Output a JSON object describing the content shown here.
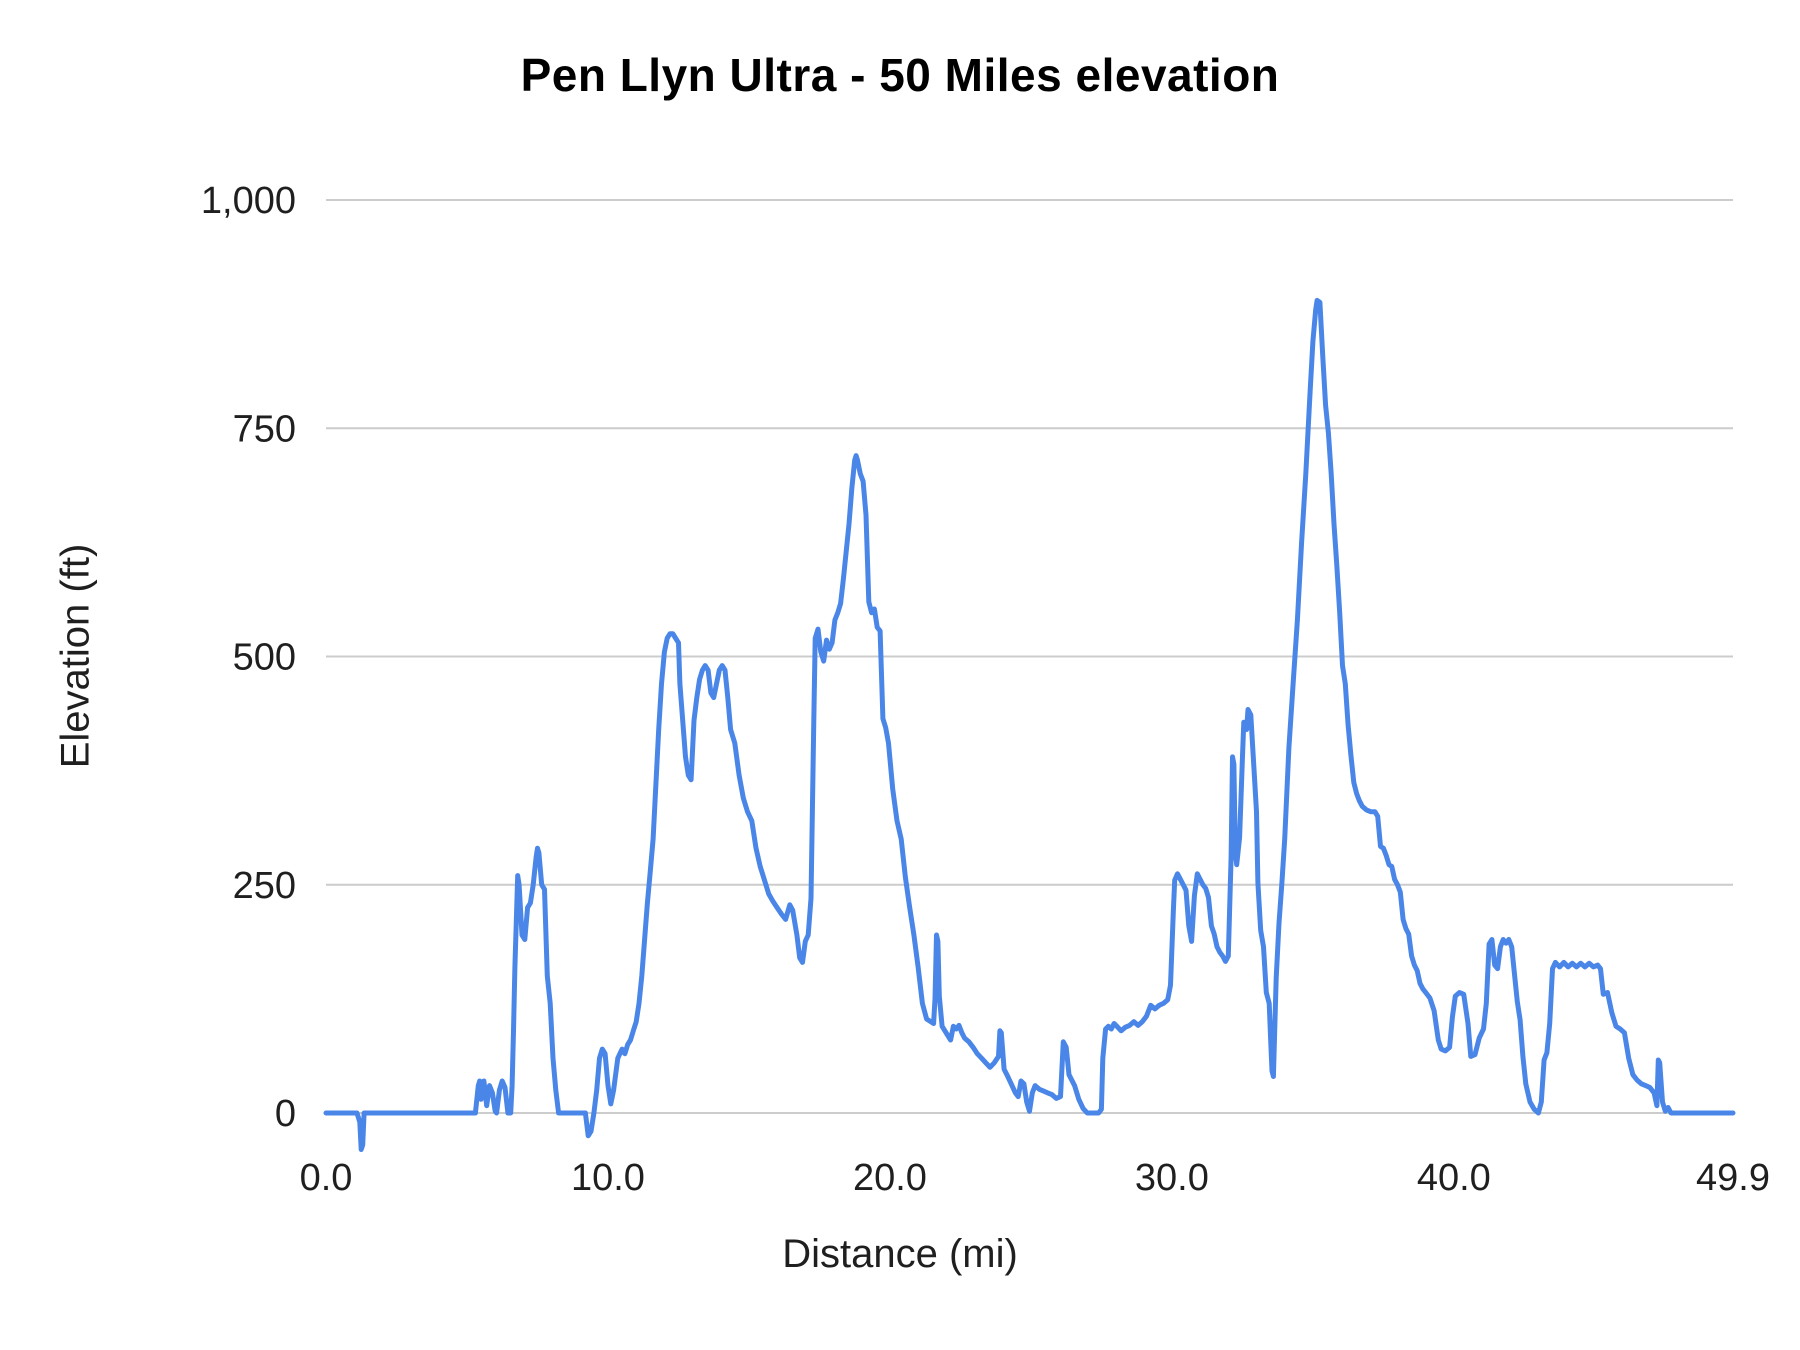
{
  "chart_data": {
    "type": "line",
    "title": "Pen Llyn Ultra - 50 Miles elevation",
    "xlabel": "Distance (mi)",
    "ylabel": "Elevation (ft)",
    "xlim": [
      0,
      49.9
    ],
    "ylim": [
      0,
      1000
    ],
    "grid": "horizontal",
    "legend": "none",
    "line_color": "#4a86e8",
    "grid_color": "#cccccc",
    "x_ticks": [
      0,
      10,
      20,
      30,
      40,
      49.9
    ],
    "x_tick_labels": [
      "0.0",
      "10.0",
      "20.0",
      "30.0",
      "40.0",
      "49.9"
    ],
    "y_ticks": [
      0,
      250,
      500,
      750,
      1000
    ],
    "y_tick_labels": [
      "0",
      "250",
      "500",
      "750",
      "1,000"
    ],
    "series": [
      {
        "name": "Elevation"
      }
    ],
    "points": [
      [
        0,
        0
      ],
      [
        0.8,
        0
      ],
      [
        1.1,
        0
      ],
      [
        1.2,
        -10
      ],
      [
        1.25,
        -40
      ],
      [
        1.3,
        -35
      ],
      [
        1.35,
        0
      ],
      [
        1.6,
        0
      ],
      [
        2,
        0
      ],
      [
        2.5,
        0
      ],
      [
        3,
        0
      ],
      [
        3.5,
        0
      ],
      [
        4,
        0
      ],
      [
        4.5,
        0
      ],
      [
        5,
        0
      ],
      [
        5.3,
        0
      ],
      [
        5.4,
        30
      ],
      [
        5.45,
        35
      ],
      [
        5.5,
        15
      ],
      [
        5.55,
        30
      ],
      [
        5.6,
        35
      ],
      [
        5.7,
        8
      ],
      [
        5.8,
        30
      ],
      [
        5.9,
        22
      ],
      [
        6,
        2
      ],
      [
        6.05,
        0
      ],
      [
        6.15,
        25
      ],
      [
        6.25,
        35
      ],
      [
        6.35,
        28
      ],
      [
        6.45,
        0
      ],
      [
        6.55,
        0
      ],
      [
        6.6,
        30
      ],
      [
        6.65,
        90
      ],
      [
        6.7,
        160
      ],
      [
        6.8,
        260
      ],
      [
        6.85,
        250
      ],
      [
        6.95,
        195
      ],
      [
        7.05,
        190
      ],
      [
        7.15,
        225
      ],
      [
        7.25,
        230
      ],
      [
        7.35,
        250
      ],
      [
        7.45,
        280
      ],
      [
        7.5,
        290
      ],
      [
        7.55,
        285
      ],
      [
        7.65,
        250
      ],
      [
        7.75,
        245
      ],
      [
        7.85,
        150
      ],
      [
        7.95,
        120
      ],
      [
        8.05,
        60
      ],
      [
        8.15,
        25
      ],
      [
        8.25,
        0
      ],
      [
        8.6,
        0
      ],
      [
        9,
        0
      ],
      [
        9.2,
        0
      ],
      [
        9.3,
        -25
      ],
      [
        9.4,
        -20
      ],
      [
        9.5,
        0
      ],
      [
        9.6,
        25
      ],
      [
        9.7,
        60
      ],
      [
        9.8,
        70
      ],
      [
        9.9,
        65
      ],
      [
        10,
        30
      ],
      [
        10.1,
        10
      ],
      [
        10.2,
        25
      ],
      [
        10.35,
        60
      ],
      [
        10.5,
        70
      ],
      [
        10.6,
        65
      ],
      [
        10.7,
        75
      ],
      [
        10.8,
        80
      ],
      [
        10.9,
        90
      ],
      [
        11,
        100
      ],
      [
        11.1,
        120
      ],
      [
        11.2,
        150
      ],
      [
        11.3,
        190
      ],
      [
        11.4,
        230
      ],
      [
        11.5,
        265
      ],
      [
        11.6,
        300
      ],
      [
        11.7,
        360
      ],
      [
        11.8,
        420
      ],
      [
        11.9,
        470
      ],
      [
        12,
        505
      ],
      [
        12.1,
        520
      ],
      [
        12.2,
        525
      ],
      [
        12.3,
        525
      ],
      [
        12.4,
        520
      ],
      [
        12.5,
        515
      ],
      [
        12.55,
        470
      ],
      [
        12.65,
        430
      ],
      [
        12.75,
        390
      ],
      [
        12.85,
        370
      ],
      [
        12.95,
        365
      ],
      [
        13.05,
        430
      ],
      [
        13.15,
        455
      ],
      [
        13.25,
        475
      ],
      [
        13.35,
        485
      ],
      [
        13.45,
        490
      ],
      [
        13.55,
        485
      ],
      [
        13.65,
        460
      ],
      [
        13.75,
        455
      ],
      [
        13.85,
        470
      ],
      [
        13.95,
        485
      ],
      [
        14.05,
        490
      ],
      [
        14.15,
        485
      ],
      [
        14.25,
        455
      ],
      [
        14.35,
        420
      ],
      [
        14.5,
        405
      ],
      [
        14.65,
        370
      ],
      [
        14.8,
        345
      ],
      [
        14.95,
        330
      ],
      [
        15.1,
        320
      ],
      [
        15.25,
        290
      ],
      [
        15.4,
        270
      ],
      [
        15.55,
        255
      ],
      [
        15.7,
        240
      ],
      [
        15.85,
        232
      ],
      [
        16,
        225
      ],
      [
        16.15,
        218
      ],
      [
        16.3,
        212
      ],
      [
        16.45,
        228
      ],
      [
        16.55,
        222
      ],
      [
        16.7,
        195
      ],
      [
        16.8,
        170
      ],
      [
        16.9,
        165
      ],
      [
        17,
        188
      ],
      [
        17.1,
        195
      ],
      [
        17.2,
        235
      ],
      [
        17.3,
        430
      ],
      [
        17.35,
        520
      ],
      [
        17.45,
        530
      ],
      [
        17.55,
        505
      ],
      [
        17.65,
        495
      ],
      [
        17.75,
        518
      ],
      [
        17.85,
        508
      ],
      [
        17.95,
        515
      ],
      [
        18.05,
        540
      ],
      [
        18.15,
        548
      ],
      [
        18.25,
        558
      ],
      [
        18.35,
        585
      ],
      [
        18.45,
        615
      ],
      [
        18.55,
        645
      ],
      [
        18.65,
        685
      ],
      [
        18.75,
        715
      ],
      [
        18.8,
        720
      ],
      [
        18.85,
        715
      ],
      [
        18.95,
        700
      ],
      [
        19.05,
        692
      ],
      [
        19.15,
        655
      ],
      [
        19.25,
        560
      ],
      [
        19.35,
        548
      ],
      [
        19.45,
        552
      ],
      [
        19.55,
        532
      ],
      [
        19.65,
        528
      ],
      [
        19.75,
        432
      ],
      [
        19.85,
        422
      ],
      [
        19.95,
        405
      ],
      [
        20.1,
        355
      ],
      [
        20.25,
        320
      ],
      [
        20.4,
        300
      ],
      [
        20.55,
        258
      ],
      [
        20.7,
        225
      ],
      [
        20.85,
        195
      ],
      [
        21,
        160
      ],
      [
        21.15,
        120
      ],
      [
        21.3,
        103
      ],
      [
        21.45,
        100
      ],
      [
        21.55,
        98
      ],
      [
        21.6,
        125
      ],
      [
        21.65,
        195
      ],
      [
        21.7,
        188
      ],
      [
        21.75,
        128
      ],
      [
        21.85,
        95
      ],
      [
        21.95,
        90
      ],
      [
        22.05,
        85
      ],
      [
        22.15,
        80
      ],
      [
        22.25,
        95
      ],
      [
        22.35,
        92
      ],
      [
        22.45,
        96
      ],
      [
        22.55,
        88
      ],
      [
        22.65,
        82
      ],
      [
        22.8,
        78
      ],
      [
        22.95,
        72
      ],
      [
        23.1,
        65
      ],
      [
        23.25,
        60
      ],
      [
        23.4,
        55
      ],
      [
        23.55,
        50
      ],
      [
        23.7,
        55
      ],
      [
        23.85,
        62
      ],
      [
        23.9,
        90
      ],
      [
        23.95,
        88
      ],
      [
        24.05,
        48
      ],
      [
        24.15,
        42
      ],
      [
        24.3,
        32
      ],
      [
        24.45,
        22
      ],
      [
        24.55,
        18
      ],
      [
        24.65,
        35
      ],
      [
        24.75,
        32
      ],
      [
        24.85,
        12
      ],
      [
        24.95,
        2
      ],
      [
        25.05,
        22
      ],
      [
        25.15,
        30
      ],
      [
        25.3,
        26
      ],
      [
        25.45,
        24
      ],
      [
        25.6,
        22
      ],
      [
        25.75,
        20
      ],
      [
        25.9,
        16
      ],
      [
        26.05,
        18
      ],
      [
        26.15,
        78
      ],
      [
        26.25,
        72
      ],
      [
        26.35,
        42
      ],
      [
        26.45,
        36
      ],
      [
        26.55,
        30
      ],
      [
        26.7,
        15
      ],
      [
        26.85,
        5
      ],
      [
        27,
        0
      ],
      [
        27.2,
        0
      ],
      [
        27.4,
        0
      ],
      [
        27.5,
        4
      ],
      [
        27.55,
        60
      ],
      [
        27.65,
        92
      ],
      [
        27.75,
        95
      ],
      [
        27.85,
        92
      ],
      [
        27.95,
        98
      ],
      [
        28.05,
        95
      ],
      [
        28.2,
        90
      ],
      [
        28.35,
        94
      ],
      [
        28.5,
        96
      ],
      [
        28.65,
        100
      ],
      [
        28.8,
        96
      ],
      [
        28.95,
        100
      ],
      [
        29.1,
        106
      ],
      [
        29.25,
        118
      ],
      [
        29.4,
        114
      ],
      [
        29.55,
        118
      ],
      [
        29.7,
        120
      ],
      [
        29.85,
        124
      ],
      [
        29.95,
        140
      ],
      [
        30.05,
        220
      ],
      [
        30.1,
        255
      ],
      [
        30.2,
        262
      ],
      [
        30.3,
        256
      ],
      [
        30.4,
        250
      ],
      [
        30.5,
        244
      ],
      [
        30.6,
        205
      ],
      [
        30.7,
        188
      ],
      [
        30.8,
        238
      ],
      [
        30.9,
        262
      ],
      [
        31,
        256
      ],
      [
        31.1,
        250
      ],
      [
        31.2,
        246
      ],
      [
        31.3,
        236
      ],
      [
        31.4,
        205
      ],
      [
        31.5,
        196
      ],
      [
        31.6,
        182
      ],
      [
        31.7,
        176
      ],
      [
        31.8,
        172
      ],
      [
        31.9,
        166
      ],
      [
        32,
        172
      ],
      [
        32.1,
        280
      ],
      [
        32.15,
        390
      ],
      [
        32.2,
        382
      ],
      [
        32.25,
        285
      ],
      [
        32.3,
        272
      ],
      [
        32.4,
        302
      ],
      [
        32.5,
        388
      ],
      [
        32.55,
        428
      ],
      [
        32.65,
        420
      ],
      [
        32.7,
        442
      ],
      [
        32.8,
        436
      ],
      [
        32.9,
        382
      ],
      [
        33,
        330
      ],
      [
        33.05,
        252
      ],
      [
        33.15,
        200
      ],
      [
        33.25,
        182
      ],
      [
        33.35,
        132
      ],
      [
        33.45,
        120
      ],
      [
        33.5,
        82
      ],
      [
        33.55,
        46
      ],
      [
        33.6,
        40
      ],
      [
        33.7,
        148
      ],
      [
        33.8,
        208
      ],
      [
        33.9,
        252
      ],
      [
        34,
        300
      ],
      [
        34.15,
        400
      ],
      [
        34.3,
        470
      ],
      [
        34.45,
        540
      ],
      [
        34.6,
        625
      ],
      [
        34.75,
        700
      ],
      [
        34.9,
        790
      ],
      [
        35,
        845
      ],
      [
        35.1,
        880
      ],
      [
        35.15,
        890
      ],
      [
        35.25,
        888
      ],
      [
        35.35,
        830
      ],
      [
        35.45,
        775
      ],
      [
        35.55,
        745
      ],
      [
        35.65,
        700
      ],
      [
        35.75,
        645
      ],
      [
        35.85,
        600
      ],
      [
        35.95,
        548
      ],
      [
        36.05,
        490
      ],
      [
        36.15,
        470
      ],
      [
        36.25,
        425
      ],
      [
        36.35,
        392
      ],
      [
        36.45,
        362
      ],
      [
        36.55,
        350
      ],
      [
        36.65,
        342
      ],
      [
        36.75,
        336
      ],
      [
        36.9,
        332
      ],
      [
        37.05,
        330
      ],
      [
        37.2,
        330
      ],
      [
        37.3,
        325
      ],
      [
        37.4,
        292
      ],
      [
        37.5,
        290
      ],
      [
        37.6,
        282
      ],
      [
        37.7,
        272
      ],
      [
        37.8,
        270
      ],
      [
        37.9,
        256
      ],
      [
        38,
        250
      ],
      [
        38.1,
        242
      ],
      [
        38.2,
        212
      ],
      [
        38.3,
        202
      ],
      [
        38.4,
        196
      ],
      [
        38.5,
        172
      ],
      [
        38.6,
        162
      ],
      [
        38.7,
        156
      ],
      [
        38.8,
        142
      ],
      [
        38.9,
        136
      ],
      [
        39,
        132
      ],
      [
        39.15,
        126
      ],
      [
        39.3,
        112
      ],
      [
        39.45,
        80
      ],
      [
        39.55,
        70
      ],
      [
        39.7,
        68
      ],
      [
        39.85,
        72
      ],
      [
        39.95,
        105
      ],
      [
        40.05,
        128
      ],
      [
        40.2,
        132
      ],
      [
        40.35,
        130
      ],
      [
        40.5,
        98
      ],
      [
        40.6,
        62
      ],
      [
        40.75,
        64
      ],
      [
        40.9,
        82
      ],
      [
        41.05,
        92
      ],
      [
        41.15,
        120
      ],
      [
        41.25,
        185
      ],
      [
        41.35,
        190
      ],
      [
        41.45,
        162
      ],
      [
        41.55,
        158
      ],
      [
        41.65,
        182
      ],
      [
        41.75,
        190
      ],
      [
        41.85,
        186
      ],
      [
        41.95,
        190
      ],
      [
        42.05,
        182
      ],
      [
        42.15,
        152
      ],
      [
        42.25,
        122
      ],
      [
        42.35,
        102
      ],
      [
        42.45,
        62
      ],
      [
        42.55,
        32
      ],
      [
        42.7,
        12
      ],
      [
        42.85,
        4
      ],
      [
        43,
        0
      ],
      [
        43.1,
        12
      ],
      [
        43.2,
        58
      ],
      [
        43.3,
        66
      ],
      [
        43.4,
        98
      ],
      [
        43.5,
        158
      ],
      [
        43.6,
        165
      ],
      [
        43.75,
        160
      ],
      [
        43.9,
        165
      ],
      [
        44.05,
        160
      ],
      [
        44.2,
        164
      ],
      [
        44.35,
        160
      ],
      [
        44.5,
        164
      ],
      [
        44.65,
        160
      ],
      [
        44.8,
        164
      ],
      [
        44.95,
        160
      ],
      [
        45.1,
        162
      ],
      [
        45.2,
        158
      ],
      [
        45.3,
        130
      ],
      [
        45.45,
        132
      ],
      [
        45.6,
        110
      ],
      [
        45.75,
        95
      ],
      [
        45.9,
        92
      ],
      [
        46.05,
        88
      ],
      [
        46.2,
        60
      ],
      [
        46.35,
        42
      ],
      [
        46.5,
        36
      ],
      [
        46.65,
        32
      ],
      [
        46.8,
        30
      ],
      [
        46.95,
        28
      ],
      [
        47.1,
        22
      ],
      [
        47.2,
        8
      ],
      [
        47.25,
        58
      ],
      [
        47.3,
        55
      ],
      [
        47.4,
        12
      ],
      [
        47.5,
        2
      ],
      [
        47.6,
        6
      ],
      [
        47.7,
        0
      ],
      [
        47.9,
        0
      ],
      [
        48.2,
        0
      ],
      [
        48.6,
        0
      ],
      [
        49,
        0
      ],
      [
        49.4,
        0
      ],
      [
        49.9,
        0
      ]
    ]
  }
}
